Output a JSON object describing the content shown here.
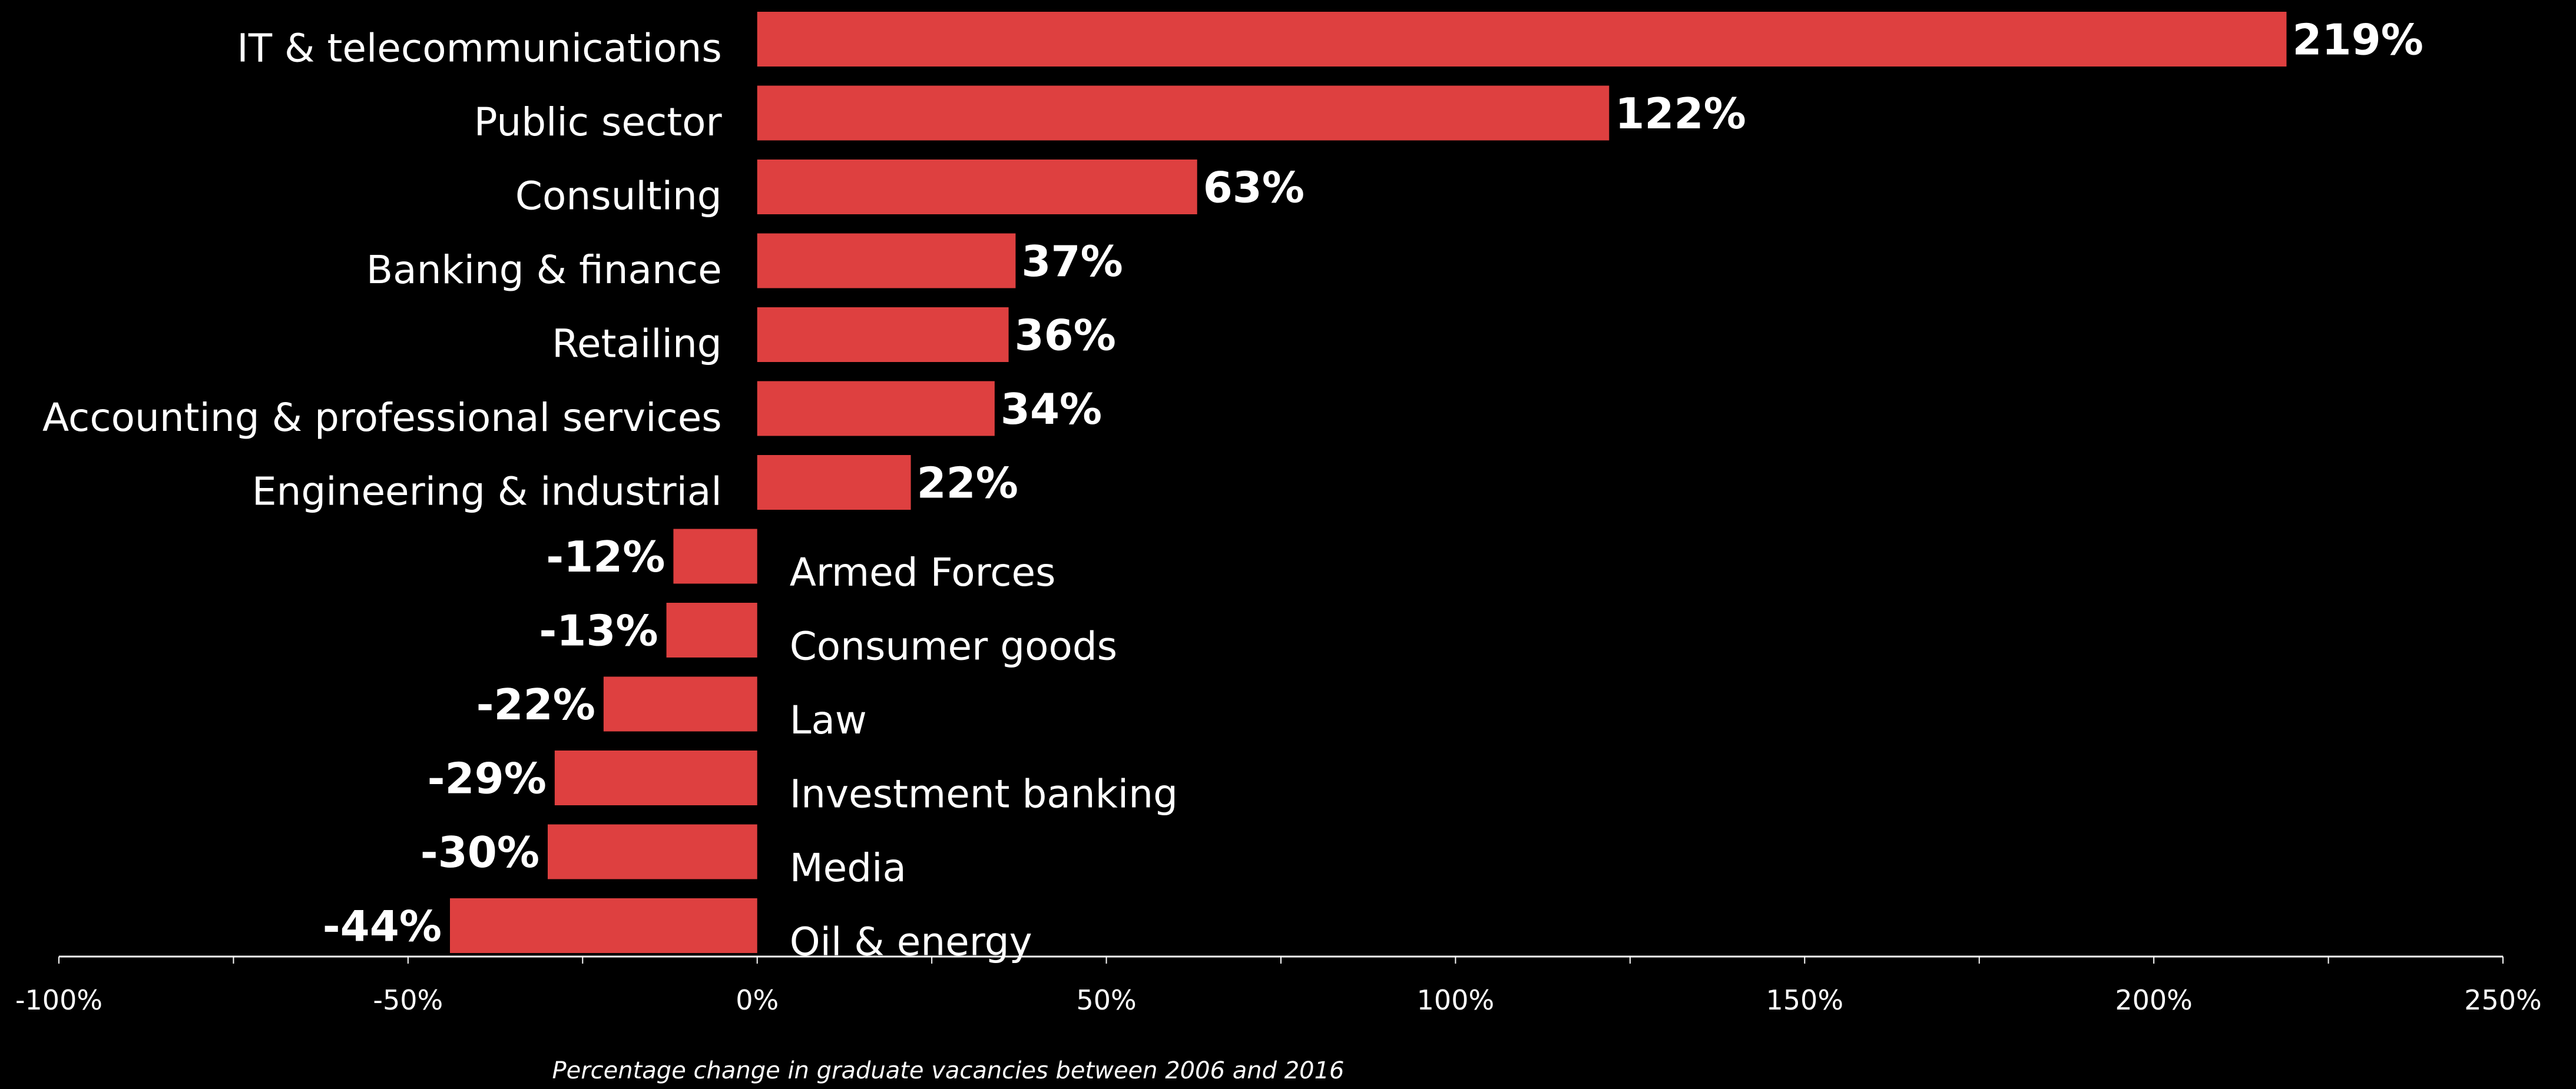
{
  "chart_data": {
    "type": "bar",
    "orientation": "horizontal",
    "categories": [
      "IT & telecommunications",
      "Public sector",
      "Consulting",
      "Banking & finance",
      "Retailing",
      "Accounting & professional services",
      "Engineering & industrial",
      "Armed Forces",
      "Consumer goods",
      "Law",
      "Investment banking",
      "Media",
      "Oil & energy"
    ],
    "values": [
      219,
      122,
      63,
      37,
      36,
      34,
      22,
      -12,
      -13,
      -22,
      -29,
      -30,
      -44
    ],
    "value_labels": [
      "219%",
      "122%",
      "63%",
      "37%",
      "36%",
      "34%",
      "22%",
      "-12%",
      "-13%",
      "-22%",
      "-29%",
      "-30%",
      "-44%"
    ],
    "xlim": [
      -100,
      250
    ],
    "x_ticks": [
      -100,
      -50,
      0,
      50,
      100,
      150,
      200,
      250
    ],
    "x_tick_labels": [
      "-100%",
      "-50%",
      "0%",
      "50%",
      "100%",
      "150%",
      "200%",
      "250%"
    ],
    "xlabel": "Percentage change in graduate vacancies  between 2006 and 2016",
    "title": "",
    "grid": false,
    "bar_color": "#de4040",
    "background_color": "#000000",
    "text_color": "#ffffff"
  }
}
